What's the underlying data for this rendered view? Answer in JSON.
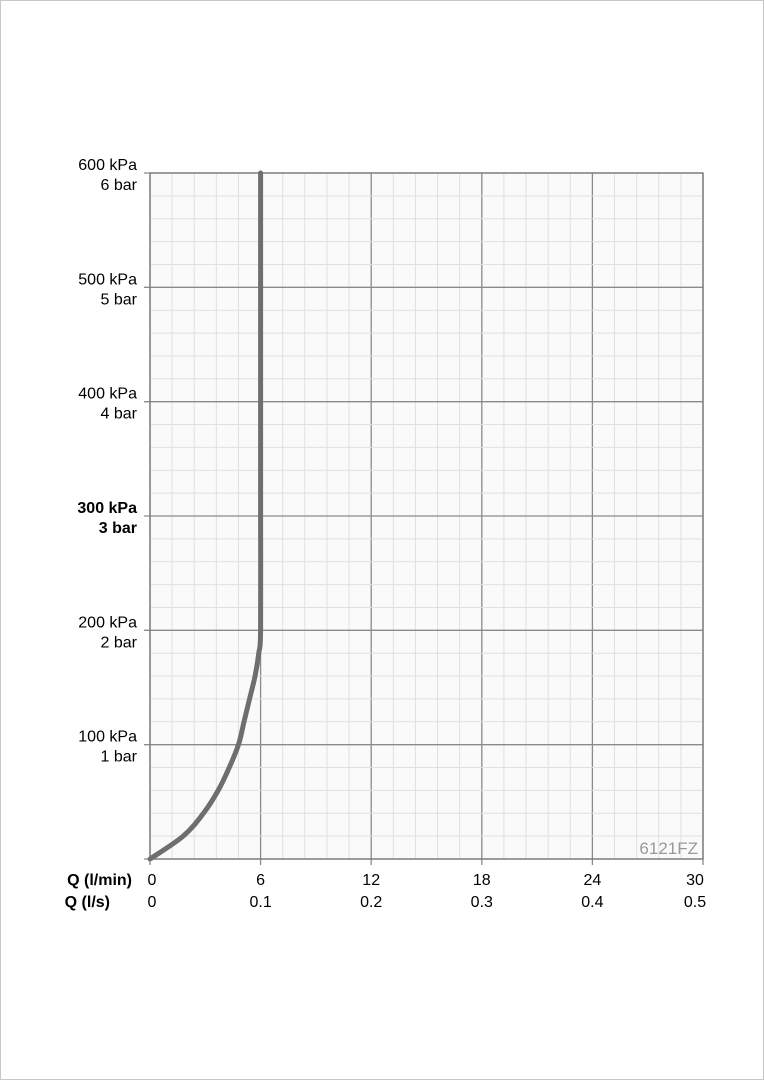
{
  "chart_data": {
    "type": "line",
    "title": "",
    "watermark": "6121FZ",
    "x_axis_labels": [
      "Q (l/min)",
      "Q (l/s)"
    ],
    "x_ticks_lmin": [
      "0",
      "6",
      "12",
      "18",
      "24",
      "30"
    ],
    "x_ticks_ls": [
      "0",
      "0.1",
      "0.2",
      "0.3",
      "0.4",
      "0.5"
    ],
    "xlim": [
      0,
      30
    ],
    "y_ticks": [
      {
        "value": 100,
        "kpa": "100 kPa",
        "bar": "1 bar",
        "bold": false
      },
      {
        "value": 200,
        "kpa": "200 kPa",
        "bar": "2 bar",
        "bold": false
      },
      {
        "value": 300,
        "kpa": "300 kPa",
        "bar": "3 bar",
        "bold": true
      },
      {
        "value": 400,
        "kpa": "400 kPa",
        "bar": "4 bar",
        "bold": false
      },
      {
        "value": 500,
        "kpa": "500 kPa",
        "bar": "5 bar",
        "bold": false
      },
      {
        "value": 600,
        "kpa": "600 kPa",
        "bar": "6 bar",
        "bold": false
      }
    ],
    "ylim": [
      0,
      600
    ],
    "grid": true,
    "minor_divisions": 5,
    "series": [
      {
        "color": "#6e6e6e",
        "points": [
          [
            0,
            0
          ],
          [
            1.8,
            20
          ],
          [
            2.9,
            40
          ],
          [
            3.7,
            60
          ],
          [
            4.3,
            80
          ],
          [
            4.8,
            100
          ],
          [
            5.1,
            120
          ],
          [
            5.4,
            140
          ],
          [
            5.7,
            160
          ],
          [
            5.9,
            180
          ],
          [
            6.0,
            200
          ],
          [
            6.0,
            300
          ],
          [
            6.0,
            400
          ],
          [
            6.0,
            500
          ],
          [
            6.0,
            600
          ]
        ]
      }
    ]
  }
}
